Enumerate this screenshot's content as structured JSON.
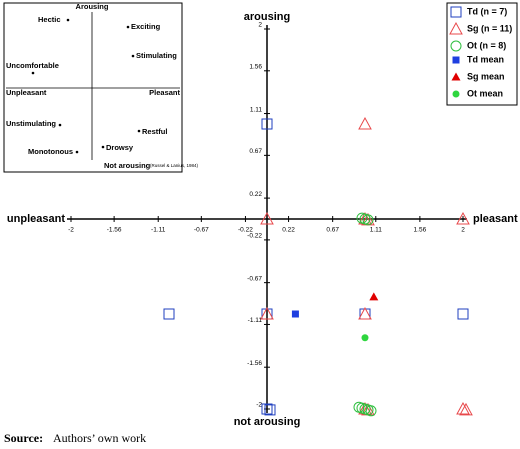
{
  "chart_data": {
    "type": "scatter",
    "xlabel_left": "unpleasant",
    "xlabel_right": "pleasant",
    "ylabel_top": "arousing",
    "ylabel_bottom": "not arousing",
    "xlim": [
      -2,
      2
    ],
    "ylim": [
      -2,
      2
    ],
    "xticks": [
      -2,
      -1.56,
      -1.11,
      -0.67,
      -0.22,
      0.22,
      0.67,
      1.11,
      1.56,
      2
    ],
    "yticks": [
      -2,
      -1.56,
      -1.11,
      -0.67,
      -0.22,
      0.22,
      0.67,
      1.11,
      1.56,
      2
    ],
    "legend": "upper right",
    "series": [
      {
        "name": "Td (n = 7)",
        "color": "#1f3fbf",
        "marker": "square",
        "filled": false,
        "x": [
          0,
          -1,
          0,
          1,
          2,
          0,
          0
        ],
        "y": [
          1,
          -1,
          -1,
          -1,
          -1,
          -2,
          -2
        ]
      },
      {
        "name": "Sg (n = 11)",
        "color": "#e8484b",
        "marker": "triangle",
        "filled": false,
        "x": [
          1,
          0,
          1,
          1,
          2,
          0,
          1,
          1,
          1,
          2,
          2
        ],
        "y": [
          1,
          0,
          0,
          0,
          0,
          -1,
          -1,
          -2,
          -2,
          -2,
          -2
        ]
      },
      {
        "name": "Ot (n = 8)",
        "color": "#2fbf3f",
        "marker": "circle",
        "filled": false,
        "x": [
          1,
          1,
          1,
          1,
          1,
          1,
          1,
          1
        ],
        "y": [
          0,
          0,
          0,
          -2,
          -2,
          -2,
          -2,
          -2
        ]
      },
      {
        "name": "Td mean",
        "color": "#1f3fe0",
        "marker": "square",
        "filled": true,
        "x": [
          0.29
        ],
        "y": [
          -1
        ]
      },
      {
        "name": "Sg mean",
        "color": "#e00000",
        "marker": "triangle",
        "filled": true,
        "x": [
          1.09
        ],
        "y": [
          -0.82
        ]
      },
      {
        "name": "Ot mean",
        "color": "#2fd63f",
        "marker": "circle",
        "filled": true,
        "x": [
          1
        ],
        "y": [
          -1.25
        ]
      }
    ]
  },
  "inset": {
    "top": "Arousing",
    "bottom": "Not arousing",
    "left": "Unpleasant",
    "right": "Pleasant",
    "citation": "(Russel & Lanius, 1984)",
    "words": [
      "Hectic",
      "Exciting",
      "Stimulating",
      "Uncomfortable",
      "Unstimulating",
      "Restful",
      "Monotonous",
      "Drowsy"
    ]
  },
  "source": {
    "label": "Source:",
    "text": "Authors’ own work"
  }
}
